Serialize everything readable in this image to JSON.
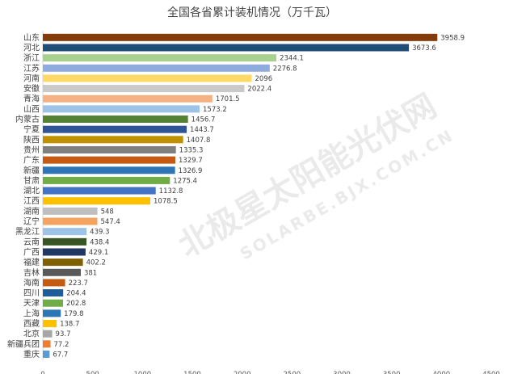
{
  "chart_data": {
    "type": "bar",
    "orientation": "horizontal",
    "title": "全国各省累计装机情况（万千瓦）",
    "categories": [
      "山东",
      "河北",
      "浙江",
      "江苏",
      "河南",
      "安徽",
      "青海",
      "山西",
      "内蒙古",
      "宁夏",
      "陕西",
      "贵州",
      "广东",
      "新疆",
      "甘肃",
      "湖北",
      "江西",
      "湖南",
      "辽宁",
      "黑龙江",
      "云南",
      "广西",
      "福建",
      "吉林",
      "海南",
      "四川",
      "天津",
      "上海",
      "西藏",
      "北京",
      "新疆兵团",
      "重庆"
    ],
    "values": [
      3958.9,
      3673.6,
      2344.1,
      2276.8,
      2096,
      2022.4,
      1701.5,
      1573.2,
      1456.7,
      1443.7,
      1407.8,
      1335.3,
      1329.7,
      1326.9,
      1275.4,
      1132.8,
      1078.5,
      548,
      547.4,
      439.3,
      438.4,
      429.1,
      402.2,
      381,
      223.7,
      204.4,
      202.8,
      179.8,
      138.7,
      93.7,
      77.2,
      67.7
    ],
    "value_labels": [
      "3958.9",
      "3673.6",
      "2344.1",
      "2276.8",
      "2096",
      "2022.4",
      "1701.5",
      "1573.2",
      "1456.7",
      "1443.7",
      "1407.8",
      "1335.3",
      "1329.7",
      "1326.9",
      "1275.4",
      "1132.8",
      "1078.5",
      "548",
      "547.4",
      "439.3",
      "438.4",
      "429.1",
      "402.2",
      "381",
      "223.7",
      "204.4",
      "202.8",
      "179.8",
      "138.7",
      "93.7",
      "77.2",
      "67.7"
    ],
    "colors": [
      "#843c0c",
      "#1f4e79",
      "#a9d18e",
      "#8faadc",
      "#ffd966",
      "#c9c9c9",
      "#f4b183",
      "#9dc3e6",
      "#548235",
      "#2f5597",
      "#bf9000",
      "#7f7f7f",
      "#c55a11",
      "#2e75b6",
      "#70ad47",
      "#4472c4",
      "#ffc000",
      "#bfbfbf",
      "#f4a460",
      "#9dc3e6",
      "#375623",
      "#203864",
      "#7f6000",
      "#595959",
      "#c55a11",
      "#1f5c99",
      "#70ad47",
      "#2e75b6",
      "#ffc000",
      "#a6a6a6",
      "#ed7d31",
      "#5b9bd5"
    ],
    "xlim": [
      0,
      4500
    ],
    "xticks": [
      "0",
      "500",
      "1000",
      "1500",
      "2000",
      "2500",
      "3000",
      "3500",
      "4000",
      "4500"
    ],
    "xlabel": "",
    "ylabel": "",
    "grid": false,
    "legend": "none"
  },
  "watermark": {
    "text_cn": "北极星太阳能光伏网",
    "text_en": "SOLARBE.BJX.COM.CN"
  }
}
